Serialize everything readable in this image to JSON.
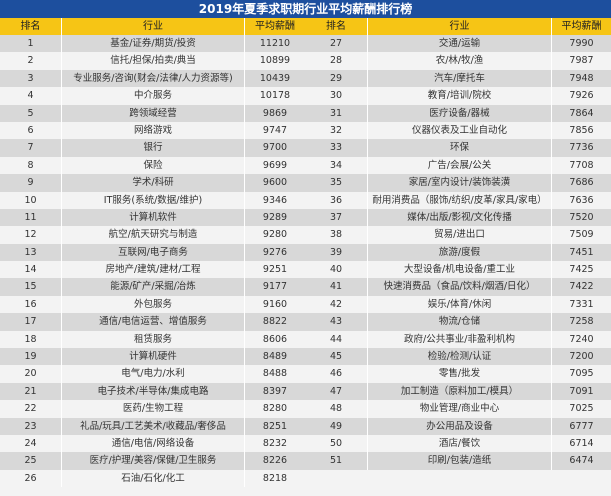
{
  "title": "2019年夏季求职期行业平均薪酬排行榜",
  "headers": {
    "rank": "排名",
    "industry": "行业",
    "salary": "平均薪酬"
  },
  "colors": {
    "title_bg": "#1d4f9e",
    "header_bg": "#f6c515",
    "row_odd": "#d8d8d8",
    "row_even": "#f3f3f3"
  },
  "left_rows": [
    {
      "rank": "1",
      "industry": "基金/证券/期货/投资",
      "salary": "11210"
    },
    {
      "rank": "2",
      "industry": "信托/担保/拍卖/典当",
      "salary": "10899"
    },
    {
      "rank": "3",
      "industry": "专业服务/咨询(财会/法律/人力资源等)",
      "salary": "10439"
    },
    {
      "rank": "4",
      "industry": "中介服务",
      "salary": "10178"
    },
    {
      "rank": "5",
      "industry": "跨领域经营",
      "salary": "9869"
    },
    {
      "rank": "6",
      "industry": "网络游戏",
      "salary": "9747"
    },
    {
      "rank": "7",
      "industry": "银行",
      "salary": "9700"
    },
    {
      "rank": "8",
      "industry": "保险",
      "salary": "9699"
    },
    {
      "rank": "9",
      "industry": "学术/科研",
      "salary": "9600"
    },
    {
      "rank": "10",
      "industry": "IT服务(系统/数据/维护)",
      "salary": "9346"
    },
    {
      "rank": "11",
      "industry": "计算机软件",
      "salary": "9289"
    },
    {
      "rank": "12",
      "industry": "航空/航天研究与制造",
      "salary": "9280"
    },
    {
      "rank": "13",
      "industry": "互联网/电子商务",
      "salary": "9276"
    },
    {
      "rank": "14",
      "industry": "房地产/建筑/建材/工程",
      "salary": "9251"
    },
    {
      "rank": "15",
      "industry": "能源/矿产/采掘/冶炼",
      "salary": "9177"
    },
    {
      "rank": "16",
      "industry": "外包服务",
      "salary": "9160"
    },
    {
      "rank": "17",
      "industry": "通信/电信运营、增值服务",
      "salary": "8822"
    },
    {
      "rank": "18",
      "industry": "租赁服务",
      "salary": "8606"
    },
    {
      "rank": "19",
      "industry": "计算机硬件",
      "salary": "8489"
    },
    {
      "rank": "20",
      "industry": "电气/电力/水利",
      "salary": "8488"
    },
    {
      "rank": "21",
      "industry": "电子技术/半导体/集成电路",
      "salary": "8397"
    },
    {
      "rank": "22",
      "industry": "医药/生物工程",
      "salary": "8280"
    },
    {
      "rank": "23",
      "industry": "礼品/玩具/工艺美术/收藏品/奢侈品",
      "salary": "8251"
    },
    {
      "rank": "24",
      "industry": "通信/电信/网络设备",
      "salary": "8232"
    },
    {
      "rank": "25",
      "industry": "医疗/护理/美容/保健/卫生服务",
      "salary": "8226"
    },
    {
      "rank": "26",
      "industry": "石油/石化/化工",
      "salary": "8218"
    }
  ],
  "right_rows": [
    {
      "rank": "27",
      "industry": "交通/运输",
      "salary": "7990"
    },
    {
      "rank": "28",
      "industry": "农/林/牧/渔",
      "salary": "7987"
    },
    {
      "rank": "29",
      "industry": "汽车/摩托车",
      "salary": "7948"
    },
    {
      "rank": "30",
      "industry": "教育/培训/院校",
      "salary": "7926"
    },
    {
      "rank": "31",
      "industry": "医疗设备/器械",
      "salary": "7864"
    },
    {
      "rank": "32",
      "industry": "仪器仪表及工业自动化",
      "salary": "7856"
    },
    {
      "rank": "33",
      "industry": "环保",
      "salary": "7736"
    },
    {
      "rank": "34",
      "industry": "广告/会展/公关",
      "salary": "7708"
    },
    {
      "rank": "35",
      "industry": "家居/室内设计/装饰装潢",
      "salary": "7686"
    },
    {
      "rank": "36",
      "industry": "耐用消费品（服饰/纺织/皮革/家具/家电）",
      "salary": "7636"
    },
    {
      "rank": "37",
      "industry": "媒体/出版/影视/文化传播",
      "salary": "7520"
    },
    {
      "rank": "38",
      "industry": "贸易/进出口",
      "salary": "7509"
    },
    {
      "rank": "39",
      "industry": "旅游/度假",
      "salary": "7451"
    },
    {
      "rank": "40",
      "industry": "大型设备/机电设备/重工业",
      "salary": "7425"
    },
    {
      "rank": "41",
      "industry": "快速消费品（食品/饮料/烟酒/日化）",
      "salary": "7422"
    },
    {
      "rank": "42",
      "industry": "娱乐/体育/休闲",
      "salary": "7331"
    },
    {
      "rank": "43",
      "industry": "物流/仓储",
      "salary": "7258"
    },
    {
      "rank": "44",
      "industry": "政府/公共事业/非盈利机构",
      "salary": "7240"
    },
    {
      "rank": "45",
      "industry": "检验/检测/认证",
      "salary": "7200"
    },
    {
      "rank": "46",
      "industry": "零售/批发",
      "salary": "7095"
    },
    {
      "rank": "47",
      "industry": "加工制造（原料加工/模具）",
      "salary": "7091"
    },
    {
      "rank": "48",
      "industry": "物业管理/商业中心",
      "salary": "7025"
    },
    {
      "rank": "49",
      "industry": "办公用品及设备",
      "salary": "6777"
    },
    {
      "rank": "50",
      "industry": "酒店/餐饮",
      "salary": "6714"
    },
    {
      "rank": "51",
      "industry": "印刷/包装/造纸",
      "salary": "6474"
    }
  ]
}
